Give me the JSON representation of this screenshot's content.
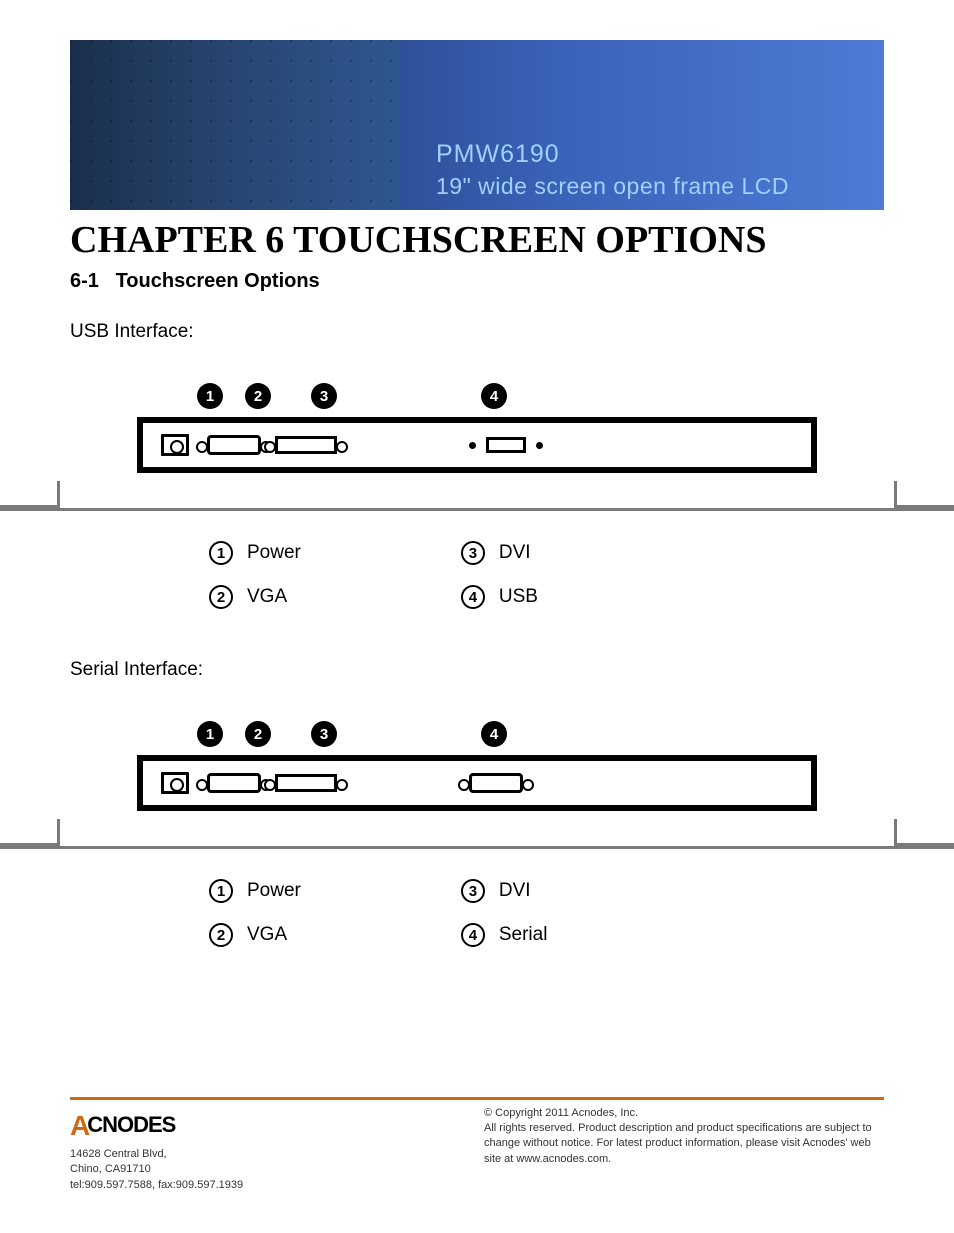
{
  "banner": {
    "model": "PMW6190",
    "subtitle": "19\" wide screen open frame LCD",
    "text_color": "#9fd0ff",
    "gradient_from": "#1a3560",
    "gradient_to": "#4f7bd6"
  },
  "chapter": {
    "title": "CHAPTER 6 TOUCHSCREEN OPTIONS",
    "section_number": "6-1",
    "section_title": "Touchscreen Options"
  },
  "diagrams": [
    {
      "key": "usb",
      "heading": "USB Interface:",
      "markers": [
        "1",
        "2",
        "3",
        "4"
      ],
      "ports": [
        "power",
        "vga",
        "dvi",
        "usb"
      ],
      "legend": [
        {
          "n": "1",
          "label": "Power"
        },
        {
          "n": "2",
          "label": "VGA"
        },
        {
          "n": "3",
          "label": "DVI"
        },
        {
          "n": "4",
          "label": "USB"
        }
      ]
    },
    {
      "key": "serial",
      "heading": "Serial Interface:",
      "markers": [
        "1",
        "2",
        "3",
        "4"
      ],
      "ports": [
        "power",
        "vga",
        "dvi",
        "serial"
      ],
      "legend": [
        {
          "n": "1",
          "label": "Power"
        },
        {
          "n": "2",
          "label": "VGA"
        },
        {
          "n": "3",
          "label": "DVI"
        },
        {
          "n": "4",
          "label": "Serial"
        }
      ]
    }
  ],
  "footer": {
    "rule_color": "#d06a12",
    "logo_text": "CNODES",
    "logo_prefix": "A",
    "address_line1": "14628 Central Blvd,",
    "address_line2": "Chino, CA91710",
    "contact": "tel:909.597.7588, fax:909.597.1939",
    "copyright": "© Copyright 2011 Acnodes, Inc.",
    "legal": "All rights reserved. Product description and product specifications are subject to change without notice. For latest product information, please visit Acnodes' web site at www.acnodes.com."
  },
  "colors": {
    "text": "#000000",
    "banner_text": "#9fd0ff",
    "accent": "#d06a12",
    "diagram_stroke": "#000000",
    "base_stroke": "#7a7a7a",
    "background": "#ffffff"
  }
}
